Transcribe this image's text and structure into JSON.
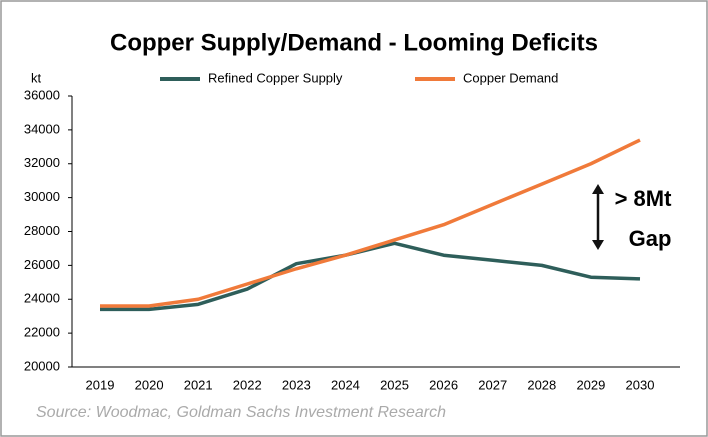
{
  "chart_data": {
    "type": "line",
    "title": "Copper Supply/Demand - Looming Deficits",
    "y_label": "kt",
    "categories": [
      "2019",
      "2020",
      "2021",
      "2022",
      "2023",
      "2024",
      "2025",
      "2026",
      "2027",
      "2028",
      "2029",
      "2030"
    ],
    "series": [
      {
        "name": "Refined Copper Supply",
        "color": "#2e5e5a",
        "values": [
          23400,
          23400,
          23700,
          24600,
          26100,
          26600,
          27300,
          26600,
          26300,
          26000,
          25300,
          25200
        ]
      },
      {
        "name": "Copper Demand",
        "color": "#f07a3a",
        "values": [
          23600,
          23600,
          24000,
          24900,
          25800,
          26600,
          27500,
          28400,
          29600,
          30800,
          32000,
          33400
        ]
      }
    ],
    "ylim": [
      20000,
      36000
    ],
    "yticks": [
      20000,
      22000,
      24000,
      26000,
      28000,
      30000,
      32000,
      34000,
      36000
    ],
    "annotation": [
      "> 8Mt",
      "Gap"
    ],
    "source": "Source: Woodmac, Goldman Sachs Investment Research"
  }
}
